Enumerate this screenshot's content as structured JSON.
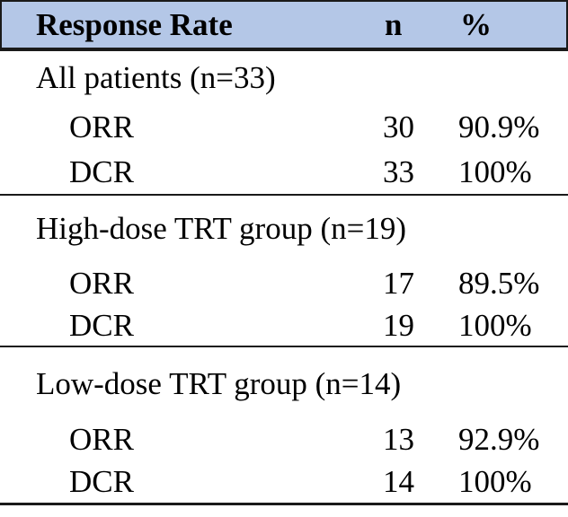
{
  "table": {
    "header": {
      "label": "Response Rate",
      "n": "n",
      "percent": "%"
    },
    "sections": [
      {
        "group": "All patients (n=33)",
        "rows": [
          {
            "label": "ORR",
            "n": "30",
            "pct": "90.9%"
          },
          {
            "label": "DCR",
            "n": "33",
            "pct": "100%"
          }
        ]
      },
      {
        "group": "High-dose TRT group (n=19)",
        "rows": [
          {
            "label": "ORR",
            "n": "17",
            "pct": "89.5%"
          },
          {
            "label": "DCR",
            "n": "19",
            "pct": "100%"
          }
        ]
      },
      {
        "group": "Low-dose TRT group (n=14)",
        "rows": [
          {
            "label": "ORR",
            "n": "13",
            "pct": "92.9%"
          },
          {
            "label": "DCR",
            "n": "14",
            "pct": "100%"
          }
        ]
      }
    ],
    "colors": {
      "header_bg": "#b4c7e7",
      "border": "#1a1a1a",
      "text": "#000000"
    }
  }
}
